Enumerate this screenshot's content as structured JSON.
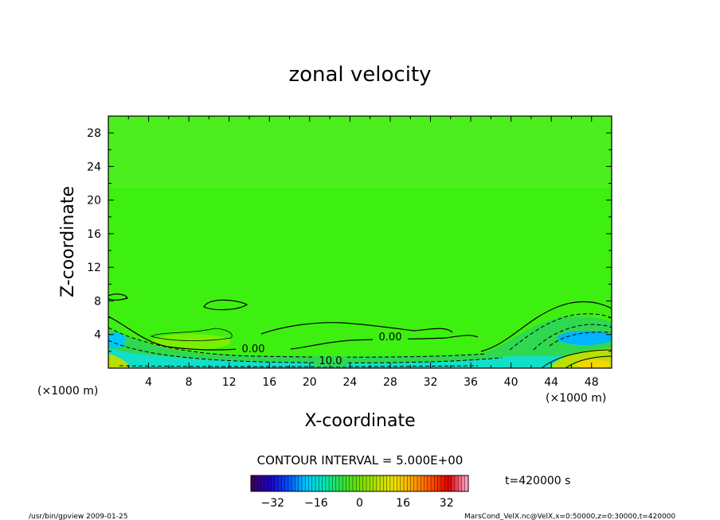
{
  "chart_data": {
    "type": "heatmap",
    "title": "zonal velocity",
    "xlabel": "X-coordinate",
    "ylabel": "Z-coordinate",
    "x_unit": "(×1000 m)",
    "y_unit": "(×1000 m)",
    "xlim": [
      0,
      50
    ],
    "ylim": [
      0,
      30
    ],
    "x_ticks": [
      4,
      8,
      12,
      16,
      20,
      24,
      28,
      32,
      36,
      40,
      44,
      48
    ],
    "y_ticks": [
      4,
      8,
      12,
      16,
      20,
      24,
      28
    ],
    "contour_labels": [
      "0.00",
      "0.00",
      "10.0"
    ],
    "contour_interval_text": "CONTOUR INTERVAL = 5.000E+00",
    "time_text": "t=420000 s",
    "colorbar": {
      "range": [
        -40,
        40
      ],
      "ticks": [
        -32,
        -16,
        0,
        16,
        32
      ],
      "colors": [
        "#3b0060",
        "#1e00c8",
        "#0050ff",
        "#00c8ff",
        "#00e6b4",
        "#30e040",
        "#70e000",
        "#b8e000",
        "#f0e000",
        "#ffa000",
        "#ff5000",
        "#e00000",
        "#ffa0c8"
      ]
    },
    "background_color": "#3ef010",
    "grid": false
  },
  "footer": {
    "left": "/usr/bin/gpview   2009-01-25",
    "right": "MarsCond_VelX.nc@VelX,x=0:50000,z=0:30000,t=420000"
  }
}
